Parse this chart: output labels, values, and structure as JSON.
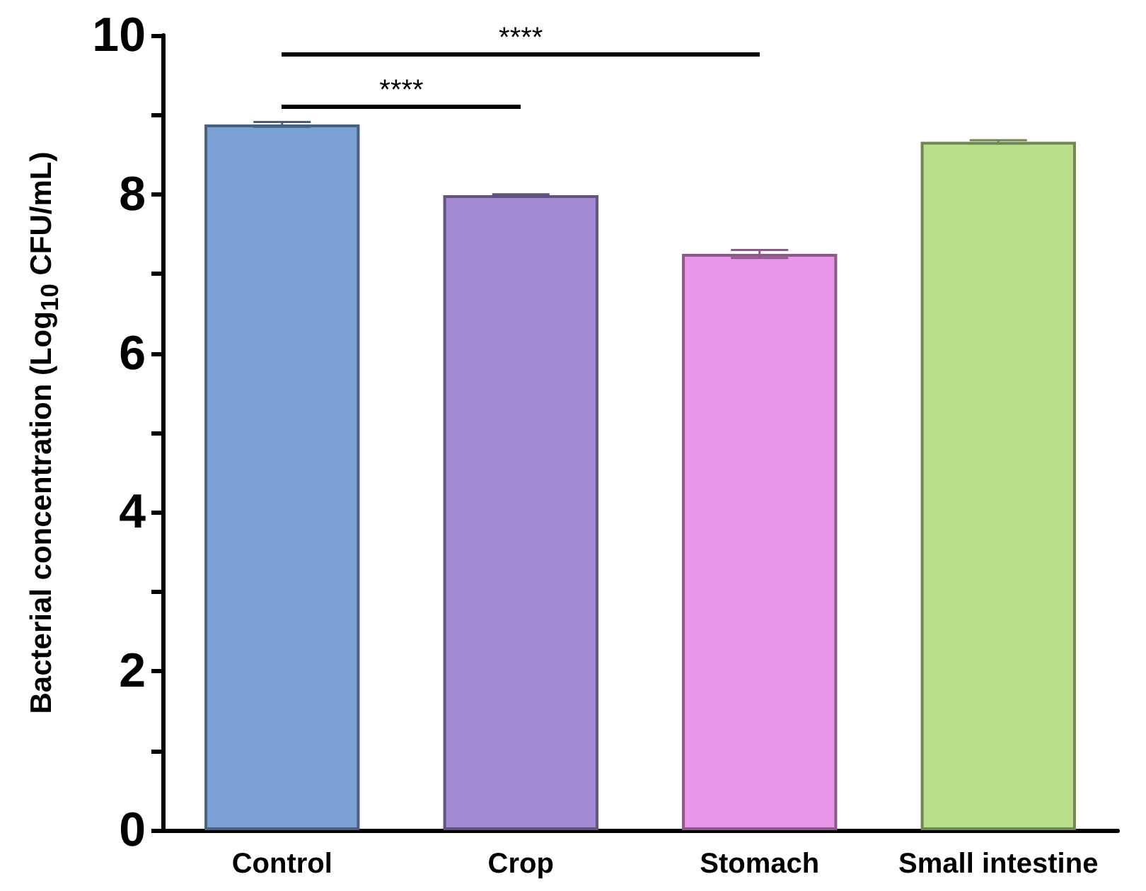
{
  "chart_data": {
    "type": "bar",
    "ylabel": "Bacterial concentration (Log$_{10}$ CFU/mL)",
    "categories": [
      "Control",
      "Crop",
      "Stomach",
      "Small intestine"
    ],
    "values": [
      8.88,
      7.99,
      7.25,
      8.66
    ],
    "errors": [
      0.03,
      0.01,
      0.05,
      0.02
    ],
    "colors": [
      "#7ba0d4",
      "#a38ad3",
      "#e995e9",
      "#badf8a"
    ],
    "ylim": [
      0,
      10
    ],
    "yticks": [
      0,
      {
        "value": 1,
        "label": null
      },
      2,
      {
        "value": 3,
        "label": null
      },
      4,
      {
        "value": 5,
        "label": null
      },
      6,
      {
        "value": 7,
        "label": null
      },
      8,
      {
        "value": 9,
        "label": null
      },
      10
    ],
    "annotations": [
      "****",
      "****"
    ],
    "grid": false
  }
}
